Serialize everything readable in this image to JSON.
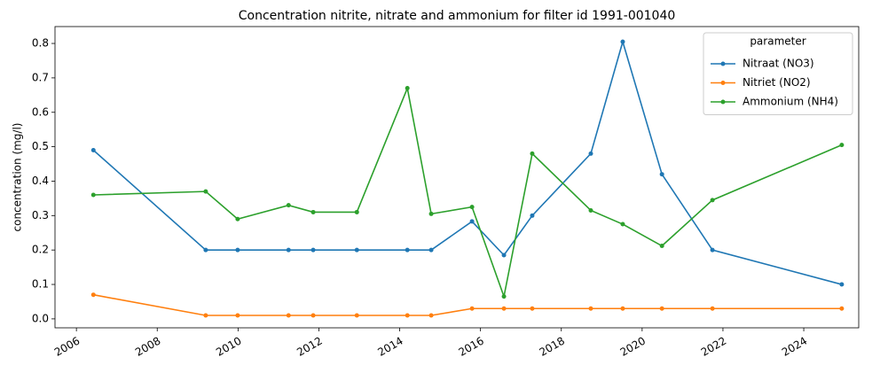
{
  "chart_data": {
    "type": "line",
    "title": "Concentration nitrite, nitrate and ammonium for filter id 1991-001040",
    "ylabel": "concentration (mg/l)",
    "legend_title": "parameter",
    "legend": "upper right",
    "x": [
      2006.42,
      2009.2,
      2009.99,
      2011.25,
      2011.86,
      2012.94,
      2014.19,
      2014.78,
      2015.79,
      2016.58,
      2017.28,
      2018.73,
      2019.52,
      2020.49,
      2021.74,
      2024.94
    ],
    "series": [
      {
        "name": "Nitraat (NO3)",
        "color": "#1f77b4",
        "values": [
          0.49,
          0.2,
          0.2,
          0.2,
          0.2,
          0.2,
          0.2,
          0.2,
          0.283,
          0.185,
          0.3,
          0.48,
          0.805,
          0.42,
          0.2,
          0.1
        ]
      },
      {
        "name": "Nitriet (NO2)",
        "color": "#ff7f0e",
        "values": [
          0.07,
          0.01,
          0.01,
          0.01,
          0.01,
          0.01,
          0.01,
          0.01,
          0.03,
          0.03,
          0.03,
          0.03,
          0.03,
          0.03,
          0.03,
          0.03
        ]
      },
      {
        "name": "Ammonium (NH4)",
        "color": "#2ca02c",
        "values": [
          0.36,
          0.37,
          0.29,
          0.33,
          0.31,
          0.31,
          0.67,
          0.305,
          0.325,
          0.065,
          0.48,
          0.315,
          0.275,
          0.212,
          0.345,
          0.505
        ]
      }
    ],
    "xlim": [
      2005.47,
      2025.36
    ],
    "xticks": [
      2006,
      2008,
      2010,
      2012,
      2014,
      2016,
      2018,
      2020,
      2022,
      2024
    ],
    "ylim": [
      -0.026,
      0.849
    ],
    "yticks": [
      {
        "value": 0,
        "label": "0.0"
      },
      0.1,
      0.2,
      0.3,
      0.4,
      0.5,
      0.6,
      0.7,
      0.8
    ]
  }
}
